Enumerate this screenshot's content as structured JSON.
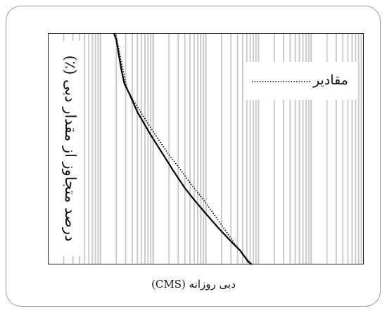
{
  "chart_data": {
    "type": "line",
    "xlabel": "دبی روزانه (CMS)",
    "ylabel": "درصد متجاوز از مقدار دبی (٪)",
    "x_scale": "log",
    "xlim": [
      1,
      1000000
    ],
    "grid": true,
    "legend": {
      "placement": "top-right"
    },
    "series": [
      {
        "style": "solid",
        "color": "#000000",
        "points": [
          [
            18.0,
            100
          ],
          [
            20.0,
            97
          ],
          [
            22.5,
            90
          ],
          [
            25.0,
            84
          ],
          [
            28.5,
            78
          ],
          [
            35.0,
            74
          ],
          [
            50.0,
            66
          ],
          [
            90.0,
            56
          ],
          [
            150.0,
            48
          ],
          [
            250.0,
            40
          ],
          [
            400.0,
            33
          ],
          [
            650.0,
            27
          ],
          [
            1000.0,
            22
          ],
          [
            1700.0,
            16
          ],
          [
            3000.0,
            10
          ],
          [
            4500.0,
            6
          ],
          [
            6500.0,
            1
          ],
          [
            7500.0,
            0
          ]
        ]
      },
      {
        "name": "مقادیر",
        "style": "dotted",
        "color": "#000000",
        "points": [
          [
            19.0,
            100
          ],
          [
            21.5,
            95
          ],
          [
            24.5,
            88
          ],
          [
            28.0,
            82
          ],
          [
            32.0,
            76
          ],
          [
            42.0,
            71
          ],
          [
            65.0,
            64
          ],
          [
            110.0,
            56
          ],
          [
            190.0,
            48
          ],
          [
            330.0,
            41
          ],
          [
            550.0,
            34
          ],
          [
            900.0,
            28
          ],
          [
            1400.0,
            22
          ],
          [
            2300.0,
            15
          ],
          [
            3800.0,
            8
          ],
          [
            5200.0,
            4
          ],
          [
            6800.0,
            1
          ],
          [
            7600.0,
            0
          ]
        ]
      }
    ]
  }
}
